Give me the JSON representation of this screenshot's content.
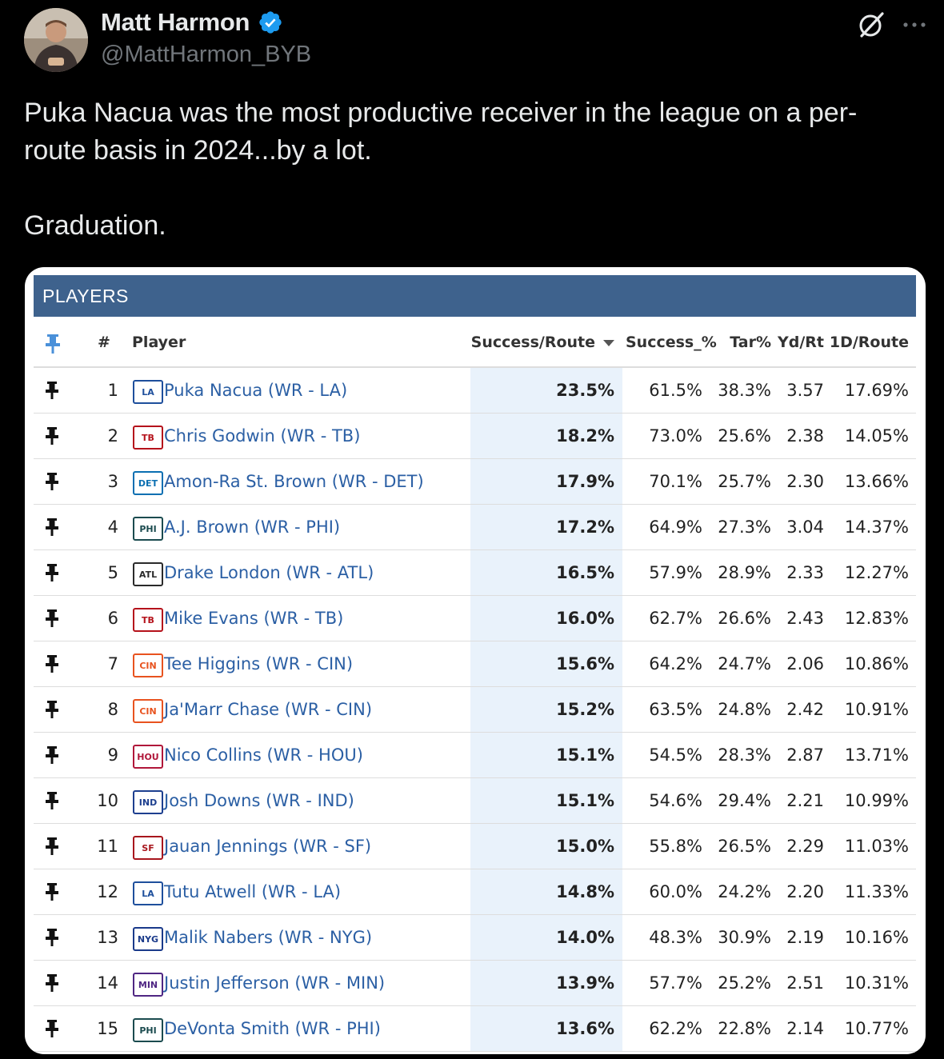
{
  "tweet": {
    "author_name": "Matt Harmon",
    "handle": "@MattHarmon_BYB",
    "paragraphs": [
      "Puka Nacua was the most productive receiver in the league on a per-route basis in 2024...by a lot.",
      "Graduation."
    ]
  },
  "card": {
    "panel_title": "PLAYERS",
    "columns": {
      "pin": "",
      "num": "#",
      "player": "Player",
      "success_route": "Success/Route",
      "success_pct": "Success_%",
      "tar_pct": "Tar%",
      "yd_rt": "Yd/Rt",
      "first_down_route": "1D/Route"
    },
    "sorted_column": "Success/Route",
    "rows": [
      {
        "rank": "1",
        "team": "LA",
        "team_color": "#1e4f9c",
        "player": "Puka Nacua (WR - LA)",
        "success_route": "23.5%",
        "success_pct": "61.5%",
        "tar_pct": "38.3%",
        "yd_rt": "3.57",
        "first_down_route": "17.69%"
      },
      {
        "rank": "2",
        "team": "TB",
        "team_color": "#b5121b",
        "player": "Chris Godwin (WR - TB)",
        "success_route": "18.2%",
        "success_pct": "73.0%",
        "tar_pct": "25.6%",
        "yd_rt": "2.38",
        "first_down_route": "14.05%"
      },
      {
        "rank": "3",
        "team": "DET",
        "team_color": "#0a6fb2",
        "player": "Amon-Ra St. Brown (WR - DET)",
        "success_route": "17.9%",
        "success_pct": "70.1%",
        "tar_pct": "25.7%",
        "yd_rt": "2.30",
        "first_down_route": "13.66%"
      },
      {
        "rank": "4",
        "team": "PHI",
        "team_color": "#1b4b4f",
        "player": "A.J. Brown (WR - PHI)",
        "success_route": "17.2%",
        "success_pct": "64.9%",
        "tar_pct": "27.3%",
        "yd_rt": "3.04",
        "first_down_route": "14.37%"
      },
      {
        "rank": "5",
        "team": "ATL",
        "team_color": "#2a2a2a",
        "player": "Drake London (WR - ATL)",
        "success_route": "16.5%",
        "success_pct": "57.9%",
        "tar_pct": "28.9%",
        "yd_rt": "2.33",
        "first_down_route": "12.27%"
      },
      {
        "rank": "6",
        "team": "TB",
        "team_color": "#b5121b",
        "player": "Mike Evans (WR - TB)",
        "success_route": "16.0%",
        "success_pct": "62.7%",
        "tar_pct": "26.6%",
        "yd_rt": "2.43",
        "first_down_route": "12.83%"
      },
      {
        "rank": "7",
        "team": "CIN",
        "team_color": "#e8531f",
        "player": "Tee Higgins (WR - CIN)",
        "success_route": "15.6%",
        "success_pct": "64.2%",
        "tar_pct": "24.7%",
        "yd_rt": "2.06",
        "first_down_route": "10.86%"
      },
      {
        "rank": "8",
        "team": "CIN",
        "team_color": "#e8531f",
        "player": "Ja'Marr Chase (WR - CIN)",
        "success_route": "15.2%",
        "success_pct": "63.5%",
        "tar_pct": "24.8%",
        "yd_rt": "2.42",
        "first_down_route": "10.91%"
      },
      {
        "rank": "9",
        "team": "HOU",
        "team_color": "#b0173a",
        "player": "Nico Collins (WR - HOU)",
        "success_route": "15.1%",
        "success_pct": "54.5%",
        "tar_pct": "28.3%",
        "yd_rt": "2.87",
        "first_down_route": "13.71%"
      },
      {
        "rank": "10",
        "team": "IND",
        "team_color": "#1d3f8f",
        "player": "Josh Downs (WR - IND)",
        "success_route": "15.1%",
        "success_pct": "54.6%",
        "tar_pct": "29.4%",
        "yd_rt": "2.21",
        "first_down_route": "10.99%"
      },
      {
        "rank": "11",
        "team": "SF",
        "team_color": "#a8161d",
        "player": "Jauan Jennings (WR - SF)",
        "success_route": "15.0%",
        "success_pct": "55.8%",
        "tar_pct": "26.5%",
        "yd_rt": "2.29",
        "first_down_route": "11.03%"
      },
      {
        "rank": "12",
        "team": "LA",
        "team_color": "#1e4f9c",
        "player": "Tutu Atwell (WR - LA)",
        "success_route": "14.8%",
        "success_pct": "60.0%",
        "tar_pct": "24.2%",
        "yd_rt": "2.20",
        "first_down_route": "11.33%"
      },
      {
        "rank": "13",
        "team": "NYG",
        "team_color": "#1a3a8a",
        "player": "Malik Nabers (WR - NYG)",
        "success_route": "14.0%",
        "success_pct": "48.3%",
        "tar_pct": "30.9%",
        "yd_rt": "2.19",
        "first_down_route": "10.16%"
      },
      {
        "rank": "14",
        "team": "MIN",
        "team_color": "#4f2683",
        "player": "Justin Jefferson (WR - MIN)",
        "success_route": "13.9%",
        "success_pct": "57.7%",
        "tar_pct": "25.2%",
        "yd_rt": "2.51",
        "first_down_route": "10.31%"
      },
      {
        "rank": "15",
        "team": "PHI",
        "team_color": "#1b4b4f",
        "player": "DeVonta Smith (WR - PHI)",
        "success_route": "13.6%",
        "success_pct": "62.2%",
        "tar_pct": "22.8%",
        "yd_rt": "2.14",
        "first_down_route": "10.77%"
      }
    ]
  },
  "colors": {
    "background": "#000000",
    "panel_header": "#3e628d",
    "highlight_column": "#e9f2fb",
    "player_link": "#2b5fa4",
    "verified_badge": "#1d9bf0"
  },
  "icons": {
    "verified": "verified-badge-icon",
    "grok": "grok-icon",
    "more": "more-options-icon",
    "pin": "pin-icon",
    "sort": "sort-descending-icon"
  }
}
